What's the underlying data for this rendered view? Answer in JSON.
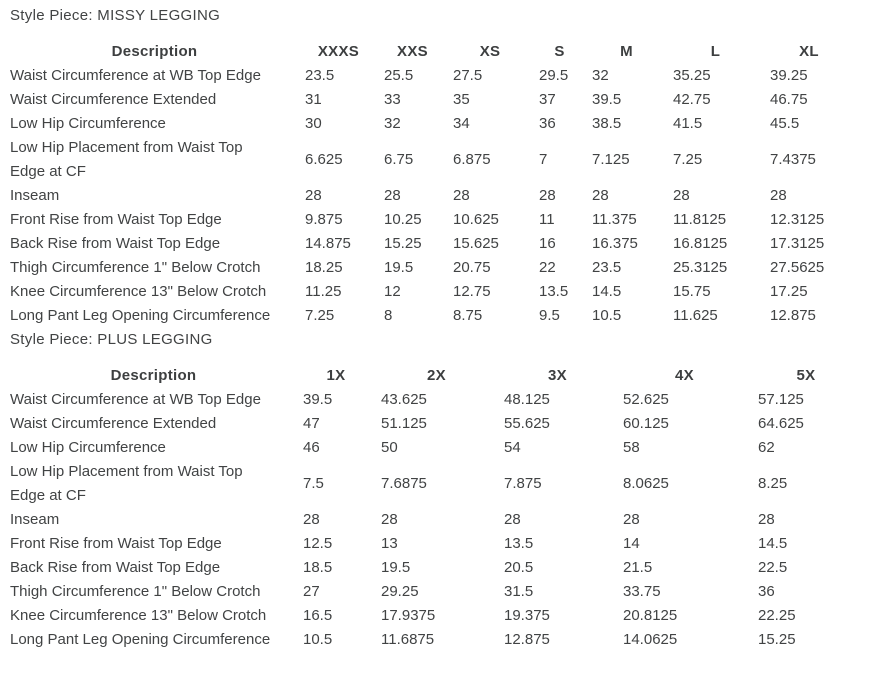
{
  "page": {
    "background_color": "#ffffff",
    "text_color": "#414344"
  },
  "tables": [
    {
      "title": "Style Piece: MISSY LEGGING",
      "columns": [
        "Description",
        "XXXS",
        "XXS",
        "XS",
        "S",
        "M",
        "L",
        "XL"
      ],
      "rows": [
        {
          "label": "Waist Circumference at WB Top Edge",
          "values": [
            "23.5",
            "25.5",
            "27.5",
            "29.5",
            "32",
            "35.25",
            "39.25"
          ]
        },
        {
          "label": "Waist Circumference Extended",
          "values": [
            "31",
            "33",
            "35",
            "37",
            "39.5",
            "42.75",
            "46.75"
          ]
        },
        {
          "label": "Low Hip Circumference",
          "values": [
            "30",
            "32",
            "34",
            "36",
            "38.5",
            "41.5",
            "45.5"
          ]
        },
        {
          "label": "Low Hip Placement from Waist Top Edge at CF",
          "values": [
            "6.625",
            "6.75",
            "6.875",
            "7",
            "7.125",
            "7.25",
            "7.4375"
          ]
        },
        {
          "label": "Inseam",
          "values": [
            "28",
            "28",
            "28",
            "28",
            "28",
            "28",
            "28"
          ]
        },
        {
          "label": "Front Rise from Waist Top Edge",
          "values": [
            "9.875",
            "10.25",
            "10.625",
            "11",
            "11.375",
            "11.8125",
            "12.3125"
          ]
        },
        {
          "label": "Back Rise from Waist Top Edge",
          "values": [
            "14.875",
            "15.25",
            "15.625",
            "16",
            "16.375",
            "16.8125",
            "17.3125"
          ]
        },
        {
          "label": "Thigh Circumference 1\" Below Crotch",
          "values": [
            "18.25",
            "19.5",
            "20.75",
            "22",
            "23.5",
            "25.3125",
            "27.5625"
          ]
        },
        {
          "label": "Knee Circumference 13\" Below Crotch",
          "values": [
            "11.25",
            "12",
            "12.75",
            "13.5",
            "14.5",
            "15.75",
            "17.25"
          ]
        },
        {
          "label": "Long Pant Leg Opening Circumference",
          "values": [
            "7.25",
            "8",
            "8.75",
            "9.5",
            "10.5",
            "11.625",
            "12.875"
          ]
        }
      ]
    },
    {
      "title": "Style Piece: PLUS LEGGING",
      "columns": [
        "Description",
        "1X",
        "2X",
        "3X",
        "4X",
        "5X"
      ],
      "rows": [
        {
          "label": "Waist Circumference at WB Top Edge",
          "values": [
            "39.5",
            "43.625",
            "48.125",
            "52.625",
            "57.125"
          ]
        },
        {
          "label": "Waist Circumference Extended",
          "values": [
            "47",
            "51.125",
            "55.625",
            "60.125",
            "64.625"
          ]
        },
        {
          "label": "Low Hip Circumference",
          "values": [
            "46",
            "50",
            "54",
            "58",
            "62"
          ]
        },
        {
          "label": "Low Hip Placement from Waist Top Edge at CF",
          "values": [
            "7.5",
            "7.6875",
            "7.875",
            "8.0625",
            "8.25"
          ]
        },
        {
          "label": "Inseam",
          "values": [
            "28",
            "28",
            "28",
            "28",
            "28"
          ]
        },
        {
          "label": "Front Rise from Waist Top Edge",
          "values": [
            "12.5",
            "13",
            "13.5",
            "14",
            "14.5"
          ]
        },
        {
          "label": "Back Rise from Waist Top Edge",
          "values": [
            "18.5",
            "19.5",
            "20.5",
            "21.5",
            "22.5"
          ]
        },
        {
          "label": "Thigh Circumference 1\" Below Crotch",
          "values": [
            "27",
            "29.25",
            "31.5",
            "33.75",
            "36"
          ]
        },
        {
          "label": "Knee Circumference 13\" Below Crotch",
          "values": [
            "16.5",
            "17.9375",
            "19.375",
            "20.8125",
            "22.25"
          ]
        },
        {
          "label": "Long Pant Leg Opening Circumference",
          "values": [
            "10.5",
            "11.6875",
            "12.875",
            "14.0625",
            "15.25"
          ]
        }
      ]
    }
  ]
}
